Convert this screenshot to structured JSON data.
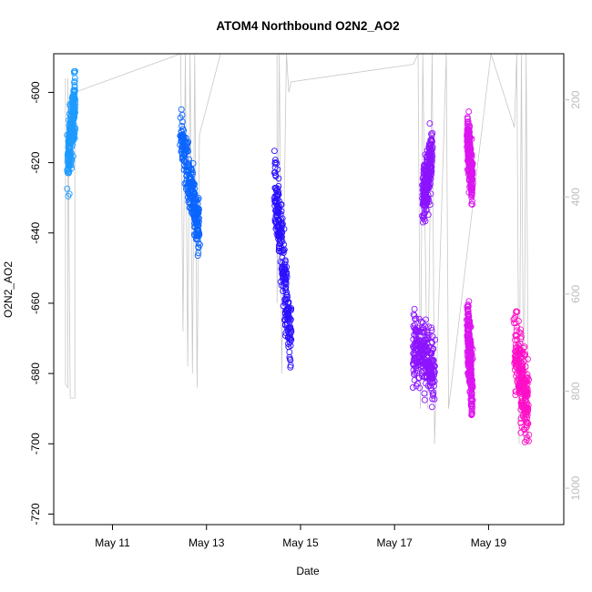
{
  "chart_data": {
    "type": "scatter",
    "title": "ATOM4 Northbound O2N2_AO2",
    "xlabel": "Date",
    "ylabel": "O2N2_AO2",
    "x_unit": "days (May)",
    "xlim": [
      9.75,
      20.6
    ],
    "ylim": [
      -723,
      -589
    ],
    "x_ticks": [
      {
        "value": 11,
        "label": "May 11"
      },
      {
        "value": 13,
        "label": "May 13"
      },
      {
        "value": 15,
        "label": "May 15"
      },
      {
        "value": 17,
        "label": "May 17"
      },
      {
        "value": 19,
        "label": "May 19"
      }
    ],
    "y_ticks": [
      -600,
      -620,
      -640,
      -660,
      -680,
      -700,
      -720
    ],
    "right_axis": {
      "color": "#bdbdbd",
      "lim": [
        1075,
        105
      ],
      "ticks": [
        200,
        400,
        600,
        800,
        1000
      ],
      "description": "secondary axis for grey trace (e.g. pressure)"
    },
    "series": [
      {
        "color": "#1e9bff",
        "clusters": [
          {
            "x0": 10.05,
            "x1": 10.2,
            "y_start": -620,
            "y_end": -602,
            "y_lo": -641,
            "y_hi": -594,
            "spread": 9
          }
        ]
      },
      {
        "color": "#0a64ff",
        "clusters": [
          {
            "x0": 12.45,
            "x1": 12.85,
            "y_start": -612,
            "y_end": -640,
            "y_hi": -602,
            "y_lo": -654,
            "spread": 8
          }
        ]
      },
      {
        "color": "#2a10ff",
        "clusters": [
          {
            "x0": 14.45,
            "x1": 14.8,
            "y_start": -625,
            "y_end": -672,
            "y_hi": -610,
            "y_lo": -694,
            "spread": 10
          }
        ]
      },
      {
        "color": "#8c14ff",
        "clusters": [
          {
            "x0": 17.4,
            "x1": 17.85,
            "y_start": -672,
            "y_end": -678,
            "y_hi": -655,
            "y_lo": -706,
            "spread": 10
          },
          {
            "x0": 17.6,
            "x1": 17.8,
            "y_start": -630,
            "y_end": -618,
            "y_hi": -608,
            "y_lo": -643,
            "spread": 8
          }
        ]
      },
      {
        "color": "#dc14f0",
        "clusters": [
          {
            "x0": 18.55,
            "x1": 18.65,
            "y_start": -612,
            "y_end": -625,
            "y_hi": -604,
            "y_lo": -640,
            "spread": 7
          },
          {
            "x0": 18.55,
            "x1": 18.65,
            "y_start": -665,
            "y_end": -685,
            "y_hi": -645,
            "y_lo": -705,
            "spread": 10
          }
        ]
      },
      {
        "color": "#ff10c8",
        "clusters": [
          {
            "x0": 19.55,
            "x1": 19.85,
            "y_start": -672,
            "y_end": -690,
            "y_hi": -610,
            "y_lo": -719,
            "spread": 12
          }
        ]
      }
    ],
    "grey_trace": [
      [
        10.0,
        -596
      ],
      [
        10.0,
        -683
      ],
      [
        10.05,
        -684
      ],
      [
        10.05,
        -596
      ],
      [
        10.1,
        -687
      ],
      [
        10.2,
        -687
      ],
      [
        10.2,
        -600
      ],
      [
        12.45,
        -589
      ],
      [
        12.5,
        -668
      ],
      [
        12.55,
        -589
      ],
      [
        12.6,
        -678
      ],
      [
        12.65,
        -589
      ],
      [
        12.7,
        -680
      ],
      [
        12.75,
        -589
      ],
      [
        12.8,
        -684
      ],
      [
        12.85,
        -612
      ],
      [
        13.3,
        -589
      ],
      [
        14.5,
        -589
      ],
      [
        14.5,
        -660
      ],
      [
        14.55,
        -589
      ],
      [
        14.6,
        -680
      ],
      [
        14.7,
        -589
      ],
      [
        14.75,
        -600
      ],
      [
        14.8,
        -597
      ],
      [
        17.4,
        -592
      ],
      [
        17.5,
        -589
      ],
      [
        17.55,
        -690
      ],
      [
        17.6,
        -589
      ],
      [
        17.7,
        -690
      ],
      [
        17.8,
        -589
      ],
      [
        17.85,
        -700
      ],
      [
        18.1,
        -589
      ],
      [
        18.15,
        -690
      ],
      [
        19.05,
        -589
      ],
      [
        19.55,
        -610
      ],
      [
        19.6,
        -589
      ],
      [
        19.65,
        -700
      ],
      [
        19.7,
        -589
      ],
      [
        19.75,
        -700
      ],
      [
        19.8,
        -589
      ],
      [
        19.85,
        -700
      ]
    ]
  }
}
